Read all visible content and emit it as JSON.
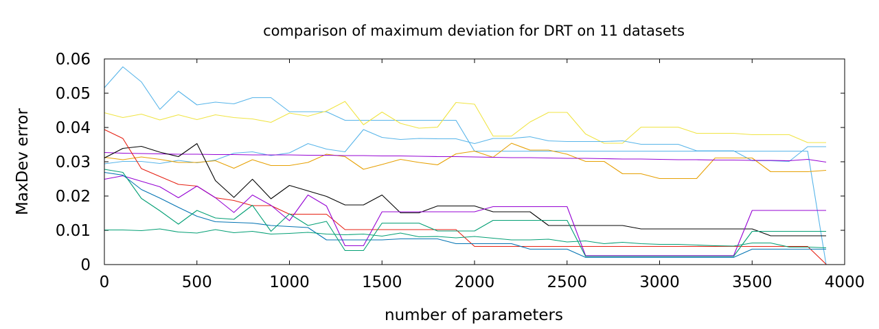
{
  "chart_data": {
    "type": "line",
    "title": "comparison of maximum deviation for DRT on 11 datasets",
    "xlabel": "number of parameters",
    "ylabel": "MaxDev error",
    "xlim": [
      0,
      4000
    ],
    "ylim": [
      0,
      0.06
    ],
    "xticks": [
      0,
      500,
      1000,
      1500,
      2000,
      2500,
      3000,
      3500,
      4000
    ],
    "xtick_labels": [
      "0",
      "500",
      "1000",
      "1500",
      "2000",
      "2500",
      "3000",
      "3500",
      "4000"
    ],
    "yticks": [
      0,
      0.01,
      0.02,
      0.03,
      0.04,
      0.05,
      0.06
    ],
    "ytick_labels": [
      "0",
      "0.01",
      "0.02",
      "0.03",
      "0.04",
      "0.05",
      "0.06"
    ],
    "grid": false,
    "legend": "none",
    "x": [
      0,
      100,
      200,
      300,
      400,
      500,
      600,
      700,
      800,
      900,
      1000,
      1100,
      1200,
      1300,
      1400,
      1500,
      1600,
      1700,
      1800,
      1900,
      2000,
      2100,
      2200,
      2300,
      2400,
      2500,
      2600,
      2700,
      2800,
      2900,
      3000,
      3100,
      3200,
      3300,
      3400,
      3500,
      3600,
      3700,
      3800,
      3900
    ],
    "series": [
      {
        "color": "#56b4e9",
        "values": [
          0.0516,
          0.0577,
          0.0533,
          0.0453,
          0.0506,
          0.0466,
          0.0474,
          0.0469,
          0.0487,
          0.0487,
          0.0446,
          0.0446,
          0.0446,
          0.0421,
          0.0421,
          0.0421,
          0.0421,
          0.0421,
          0.0421,
          0.0421,
          0.0331,
          0.0331,
          0.0331,
          0.0331,
          0.0331,
          0.0331,
          0.0331,
          0.0331,
          0.0331,
          0.0331,
          0.0331,
          0.0331,
          0.0331,
          0.0331,
          0.0331,
          0.0331,
          0.0331,
          0.0331,
          0.0331,
          0.0
        ]
      },
      {
        "color": "#f0e442",
        "values": [
          0.0443,
          0.0429,
          0.0439,
          0.0422,
          0.0437,
          0.0423,
          0.0437,
          0.0429,
          0.0425,
          0.0415,
          0.0442,
          0.0433,
          0.0448,
          0.0476,
          0.0408,
          0.0445,
          0.0412,
          0.0398,
          0.0401,
          0.0473,
          0.0468,
          0.0375,
          0.0375,
          0.0416,
          0.0444,
          0.0444,
          0.0381,
          0.0354,
          0.0354,
          0.0401,
          0.0401,
          0.0401,
          0.0383,
          0.0383,
          0.0383,
          0.0379,
          0.0379,
          0.0379,
          0.0356,
          0.0356
        ]
      },
      {
        "color": "#56b4e9",
        "values": [
          0.0294,
          0.0301,
          0.0301,
          0.0295,
          0.0304,
          0.0297,
          0.0305,
          0.0325,
          0.0329,
          0.0318,
          0.0326,
          0.0353,
          0.0337,
          0.0329,
          0.0394,
          0.0371,
          0.0365,
          0.0368,
          0.0367,
          0.0367,
          0.0353,
          0.0368,
          0.0368,
          0.0373,
          0.0361,
          0.0359,
          0.0359,
          0.0359,
          0.0361,
          0.0351,
          0.0351,
          0.0351,
          0.0332,
          0.0332,
          0.0332,
          0.0303,
          0.0303,
          0.0301,
          0.0344,
          0.0344
        ]
      },
      {
        "color": "#e69f00",
        "values": [
          0.0313,
          0.0306,
          0.0314,
          0.0307,
          0.0298,
          0.0298,
          0.0303,
          0.0281,
          0.0306,
          0.0289,
          0.0289,
          0.0298,
          0.0322,
          0.0315,
          0.0278,
          0.0292,
          0.0307,
          0.0298,
          0.0291,
          0.0323,
          0.0331,
          0.0313,
          0.0354,
          0.0334,
          0.0334,
          0.0322,
          0.0301,
          0.0301,
          0.0265,
          0.0265,
          0.0251,
          0.0251,
          0.0251,
          0.0311,
          0.0311,
          0.0311,
          0.0271,
          0.0271,
          0.0271,
          0.0275
        ]
      },
      {
        "color": "#9400d3",
        "values": [
          0.0327,
          0.0325,
          0.0324,
          0.0323,
          0.0322,
          0.0322,
          0.0321,
          0.0321,
          0.032,
          0.032,
          0.032,
          0.0319,
          0.0319,
          0.0318,
          0.0318,
          0.0317,
          0.0317,
          0.0316,
          0.0315,
          0.0315,
          0.0314,
          0.0313,
          0.0312,
          0.0312,
          0.0311,
          0.031,
          0.031,
          0.0309,
          0.0308,
          0.0308,
          0.0307,
          0.0306,
          0.0306,
          0.0305,
          0.0305,
          0.0304,
          0.0304,
          0.0303,
          0.0307,
          0.0299
        ]
      },
      {
        "color": "#000000",
        "values": [
          0.0311,
          0.0339,
          0.0345,
          0.0328,
          0.0315,
          0.0353,
          0.0245,
          0.0196,
          0.0249,
          0.0192,
          0.0231,
          0.0215,
          0.0199,
          0.0174,
          0.0174,
          0.0203,
          0.0151,
          0.0151,
          0.0171,
          0.0171,
          0.0171,
          0.0154,
          0.0154,
          0.0154,
          0.0114,
          0.0114,
          0.0114,
          0.0114,
          0.0114,
          0.0104,
          0.0104,
          0.0104,
          0.0104,
          0.0104,
          0.0104,
          0.0104,
          0.0084,
          0.0084,
          0.0084,
          0.0084
        ]
      },
      {
        "color": "#e51e10",
        "values": [
          0.0394,
          0.0368,
          0.028,
          0.0257,
          0.0234,
          0.0229,
          0.0195,
          0.0187,
          0.0172,
          0.0172,
          0.0147,
          0.0147,
          0.0147,
          0.0102,
          0.0102,
          0.0102,
          0.0102,
          0.0102,
          0.0102,
          0.0102,
          0.0053,
          0.0053,
          0.0053,
          0.0053,
          0.0053,
          0.0053,
          0.0053,
          0.0053,
          0.0053,
          0.0053,
          0.0053,
          0.0053,
          0.0053,
          0.0053,
          0.0053,
          0.0053,
          0.0053,
          0.0053,
          0.0053,
          0.0001
        ]
      },
      {
        "color": "#9400d3",
        "values": [
          0.0249,
          0.0259,
          0.0243,
          0.0227,
          0.0195,
          0.0229,
          0.0195,
          0.0152,
          0.0203,
          0.0173,
          0.0128,
          0.0203,
          0.0171,
          0.0055,
          0.0055,
          0.0154,
          0.0154,
          0.0154,
          0.0154,
          0.0154,
          0.0154,
          0.0169,
          0.0169,
          0.0169,
          0.0169,
          0.0169,
          0.0026,
          0.0026,
          0.0026,
          0.0026,
          0.0026,
          0.0026,
          0.0026,
          0.0026,
          0.0026,
          0.0158,
          0.0158,
          0.0158,
          0.0158,
          0.0158
        ]
      },
      {
        "color": "#0072b2",
        "values": [
          0.0269,
          0.0261,
          0.0219,
          0.0194,
          0.0167,
          0.0141,
          0.0125,
          0.0123,
          0.0121,
          0.0114,
          0.0111,
          0.0108,
          0.0072,
          0.0072,
          0.0072,
          0.0072,
          0.0075,
          0.0075,
          0.0075,
          0.0061,
          0.0061,
          0.0061,
          0.0061,
          0.0045,
          0.0045,
          0.0045,
          0.0021,
          0.0021,
          0.0021,
          0.0021,
          0.0021,
          0.0021,
          0.0021,
          0.0021,
          0.0021,
          0.0045,
          0.0045,
          0.0045,
          0.0045,
          0.0045
        ]
      },
      {
        "color": "#009e73",
        "values": [
          0.0278,
          0.0269,
          0.0193,
          0.0157,
          0.0118,
          0.0158,
          0.0136,
          0.0132,
          0.0173,
          0.0097,
          0.0148,
          0.0114,
          0.0126,
          0.0041,
          0.0041,
          0.0121,
          0.0121,
          0.0121,
          0.0098,
          0.0098,
          0.0098,
          0.0129,
          0.0129,
          0.0129,
          0.0129,
          0.0129,
          0.0024,
          0.0024,
          0.0024,
          0.0024,
          0.0024,
          0.0024,
          0.0024,
          0.0024,
          0.0024,
          0.0097,
          0.0097,
          0.0097,
          0.0097,
          0.0097
        ]
      },
      {
        "color": "#009e73",
        "values": [
          0.0101,
          0.0101,
          0.0099,
          0.0104,
          0.0095,
          0.0092,
          0.0102,
          0.0093,
          0.0097,
          0.0089,
          0.0091,
          0.0094,
          0.0089,
          0.0087,
          0.0089,
          0.0083,
          0.0092,
          0.0081,
          0.0082,
          0.0078,
          0.0082,
          0.0077,
          0.0072,
          0.0072,
          0.0074,
          0.0066,
          0.0069,
          0.0061,
          0.0065,
          0.0061,
          0.0059,
          0.0059,
          0.0057,
          0.0055,
          0.0054,
          0.0063,
          0.0063,
          0.0051,
          0.0051,
          0.0049
        ]
      }
    ]
  }
}
